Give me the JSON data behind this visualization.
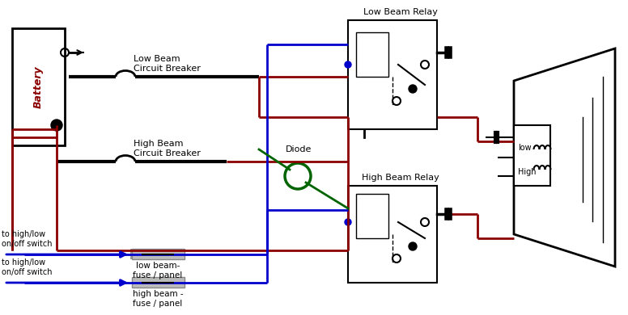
{
  "bg_color": "#ffffff",
  "wire_red": "#8B0000",
  "wire_blue": "#0000CD",
  "wire_black": "#000000",
  "wire_green": "#006400",
  "battery_label": "Battery",
  "low_relay_label": "Low Beam Relay",
  "high_relay_label": "High Beam Relay",
  "low_cb_label": "Low Beam\nCircuit Breaker",
  "high_cb_label": "High Beam\nCircuit Breaker",
  "diode_label": "Diode",
  "low_fuse_label": "low beam-\nfuse / panel",
  "high_fuse_label": "high beam -\nfuse / panel",
  "switch_label_low": "to high/low\non/off switch",
  "switch_label_high": "to high/low\non/off switch",
  "low_beam_label": "low",
  "high_beam_label": "High",
  "lw": 2.0
}
